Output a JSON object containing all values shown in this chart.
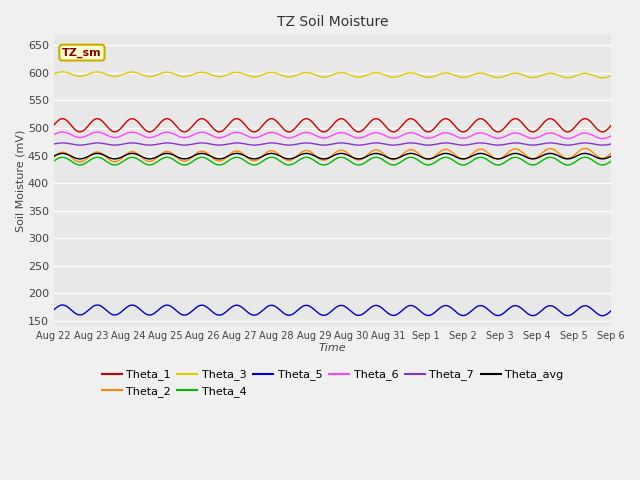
{
  "title": "TZ Soil Moisture",
  "xlabel": "Time",
  "ylabel": "Soil Moisture (mV)",
  "ylim": [
    140,
    670
  ],
  "yticks": [
    150,
    200,
    250,
    300,
    350,
    400,
    450,
    500,
    550,
    600,
    650
  ],
  "fig_color": "#f0f0f0",
  "plot_bg_color": "#e8e8e8",
  "legend_label": "TZ_sm",
  "legend_label_color": "#880000",
  "legend_box_facecolor": "#ffffcc",
  "legend_box_edgecolor": "#ccaa00",
  "n_points": 500,
  "xtick_labels": [
    "Aug 22",
    "Aug 23",
    "Aug 24",
    "Aug 25",
    "Aug 26",
    "Aug 27",
    "Aug 28",
    "Aug 29",
    "Aug 30",
    "Aug 31",
    "Sep 1",
    "Sep 2",
    "Sep 3",
    "Sep 4",
    "Sep 5",
    "Sep 6"
  ],
  "series": [
    {
      "name": "Theta_1",
      "color": "#cc0000",
      "base": 505,
      "amp": 12,
      "freq_cycles": 16.0,
      "trend": 0.0
    },
    {
      "name": "Theta_2",
      "color": "#ff8800",
      "base": 447,
      "amp": 9,
      "freq_cycles": 16.0,
      "trend": 0.5
    },
    {
      "name": "Theta_3",
      "color": "#ddcc00",
      "base": 598,
      "amp": 4,
      "freq_cycles": 16.0,
      "trend": -0.2
    },
    {
      "name": "Theta_4",
      "color": "#00bb00",
      "base": 440,
      "amp": 7,
      "freq_cycles": 16.0,
      "trend": 0.0
    },
    {
      "name": "Theta_5",
      "color": "#0000cc",
      "base": 170,
      "amp": 9,
      "freq_cycles": 16.0,
      "trend": -0.1
    },
    {
      "name": "Theta_6",
      "color": "#ff44ff",
      "base": 488,
      "amp": 5,
      "freq_cycles": 16.0,
      "trend": -0.15
    },
    {
      "name": "Theta_7",
      "color": "#8833cc",
      "base": 471,
      "amp": 2,
      "freq_cycles": 16.0,
      "trend": 0.0
    },
    {
      "name": "Theta_avg",
      "color": "#000000",
      "base": 449,
      "amp": 5,
      "freq_cycles": 16.0,
      "trend": 0.0
    }
  ]
}
